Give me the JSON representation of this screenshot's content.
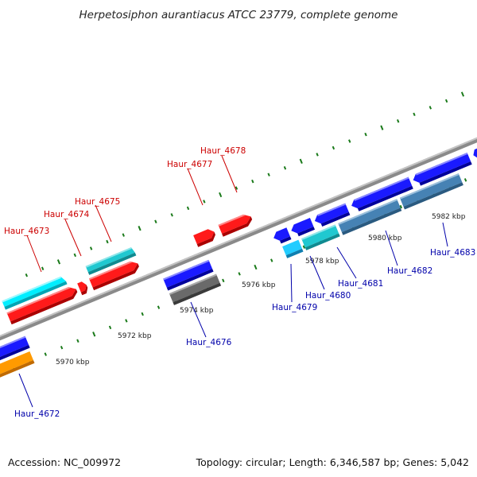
{
  "title": "Herpetosiphon aurantiacus ATCC 23779, complete genome",
  "footer": {
    "accession": "Accession: NC_009972",
    "topology": "Topology: circular; Length: 6,346,587 bp; Genes: 5,042"
  },
  "colors": {
    "forward_label": "#cc0000",
    "reverse_label": "#0000aa",
    "backbone": "#8a8a8a",
    "tick": "#1a7a1a"
  },
  "scale_labels": [
    "5970 kbp",
    "5972 kbp",
    "5974 kbp",
    "5976 kbp",
    "5978 kbp",
    "5980 kbp",
    "5982 kbp"
  ],
  "genes": [
    {
      "name": "Haur_4673",
      "strand": "forward",
      "color": "#ff1a1a"
    },
    {
      "name": "Haur_4674",
      "strand": "forward",
      "color": "#ff1a1a"
    },
    {
      "name": "Haur_4675",
      "strand": "forward",
      "color": "#ff1a1a"
    },
    {
      "name": "Haur_4677",
      "strand": "forward",
      "color": "#ff1a1a"
    },
    {
      "name": "Haur_4678",
      "strand": "forward",
      "color": "#ff1a1a"
    },
    {
      "name": "Haur_4672",
      "strand": "reverse",
      "color": "#1a1aff"
    },
    {
      "name": "Haur_4676",
      "strand": "reverse",
      "color": "#1a1aff"
    },
    {
      "name": "Haur_4679",
      "strand": "reverse",
      "color": "#1a1aff"
    },
    {
      "name": "Haur_4680",
      "strand": "reverse",
      "color": "#1a1aff"
    },
    {
      "name": "Haur_4681",
      "strand": "reverse",
      "color": "#1a1aff"
    },
    {
      "name": "Haur_4682",
      "strand": "reverse",
      "color": "#1a1aff"
    },
    {
      "name": "Haur_4683",
      "strand": "reverse",
      "color": "#1a1aff"
    }
  ]
}
